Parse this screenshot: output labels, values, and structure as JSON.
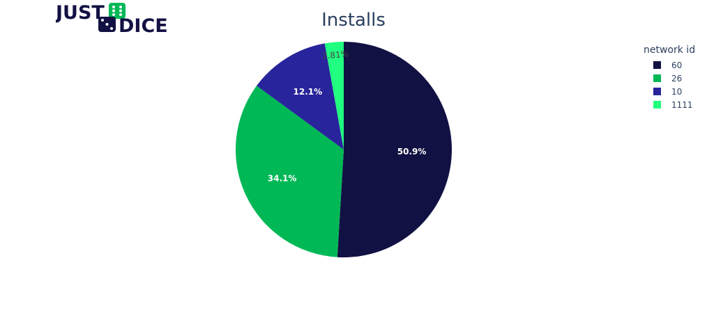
{
  "logo": {
    "line1": "JUST",
    "line2": "DICE",
    "colors": {
      "text": "#121143",
      "dice": "#00b856"
    }
  },
  "chart_data": {
    "type": "pie",
    "title": "Installs",
    "legend_title": "network id",
    "legend_position": "top-right",
    "categories": [
      "60",
      "26",
      "10",
      "1111"
    ],
    "values": [
      50.9,
      34.1,
      12.1,
      2.81
    ],
    "labels": [
      "50.9%",
      "34.1%",
      "12.1%",
      "2.81%"
    ],
    "colors": [
      "#121143",
      "#00b856",
      "#28249b",
      "#20ff80"
    ],
    "direction": "clockwise",
    "start": "12 o'clock"
  }
}
